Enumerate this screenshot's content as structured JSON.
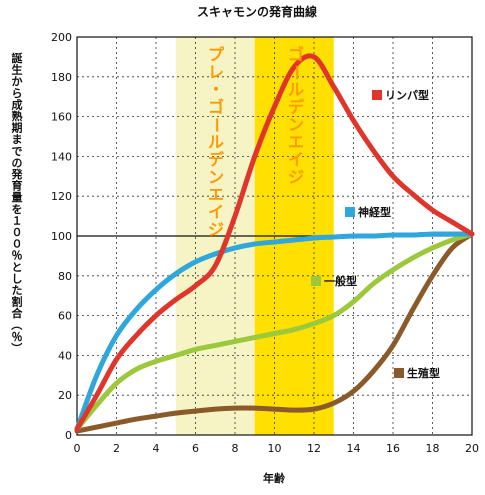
{
  "chart_data": {
    "type": "line",
    "title": "スキャモンの発育曲線",
    "xlabel": "年齢",
    "ylabel": "誕生から成熟期までの発育量を１００％とした割合（％）",
    "xlim": [
      0,
      20
    ],
    "ylim": [
      0,
      200
    ],
    "x_ticks": [
      0,
      2,
      4,
      6,
      8,
      10,
      12,
      14,
      16,
      18,
      20
    ],
    "y_ticks": [
      0,
      20,
      40,
      60,
      80,
      100,
      120,
      140,
      160,
      180,
      200
    ],
    "grid": true,
    "reference_line": 100,
    "bands": [
      {
        "label": "プレ・ゴールデンエイジ",
        "from": 5,
        "to": 9,
        "color": "#f6f4c4"
      },
      {
        "label": "ゴールデンエイジ",
        "from": 9,
        "to": 13,
        "color": "#ffe000"
      }
    ],
    "series": [
      {
        "name": "リンパ型",
        "color": "#e0352b",
        "x": [
          0,
          1,
          2,
          3,
          4,
          5,
          6,
          7,
          8,
          9,
          10,
          11,
          12,
          13,
          14,
          15,
          16,
          17,
          18,
          19,
          20
        ],
        "values": [
          3,
          20,
          38,
          50,
          60,
          68,
          75,
          85,
          110,
          140,
          165,
          185,
          190,
          175,
          158,
          143,
          130,
          121,
          113,
          107,
          101
        ]
      },
      {
        "name": "神経型",
        "color": "#2fa6dc",
        "x": [
          0,
          1,
          2,
          3,
          4,
          5,
          6,
          7,
          8,
          9,
          10,
          11,
          12,
          13,
          14,
          15,
          16,
          17,
          18,
          19,
          20
        ],
        "values": [
          3,
          30,
          50,
          63,
          73,
          81,
          87,
          91,
          94,
          96,
          97,
          98,
          99,
          99.5,
          100,
          100,
          100.5,
          100.5,
          101,
          101,
          101
        ]
      },
      {
        "name": "一般型",
        "color": "#9cc83c",
        "x": [
          0,
          1,
          2,
          3,
          4,
          5,
          6,
          7,
          8,
          9,
          10,
          11,
          12,
          13,
          14,
          15,
          16,
          17,
          18,
          19,
          20
        ],
        "values": [
          3,
          15,
          26,
          33,
          37,
          40,
          43,
          45,
          47,
          49,
          51,
          53,
          56,
          60,
          67,
          76,
          83,
          89,
          94,
          98,
          101
        ]
      },
      {
        "name": "生殖型",
        "color": "#8a5a2b",
        "x": [
          0,
          1,
          2,
          3,
          4,
          5,
          6,
          7,
          8,
          9,
          10,
          11,
          12,
          13,
          14,
          15,
          16,
          17,
          18,
          19,
          20
        ],
        "values": [
          2,
          4,
          6,
          8,
          9.5,
          11,
          12,
          13,
          13.5,
          13.5,
          13,
          12.5,
          13,
          16,
          22,
          32,
          45,
          63,
          80,
          94,
          101
        ]
      }
    ],
    "legend_items": [
      {
        "label": "リンパ型",
        "color": "#e0352b"
      },
      {
        "label": "神経型",
        "color": "#2fa6dc"
      },
      {
        "label": "一般型",
        "color": "#9cc83c"
      },
      {
        "label": "生殖型",
        "color": "#8a5a2b"
      }
    ]
  }
}
